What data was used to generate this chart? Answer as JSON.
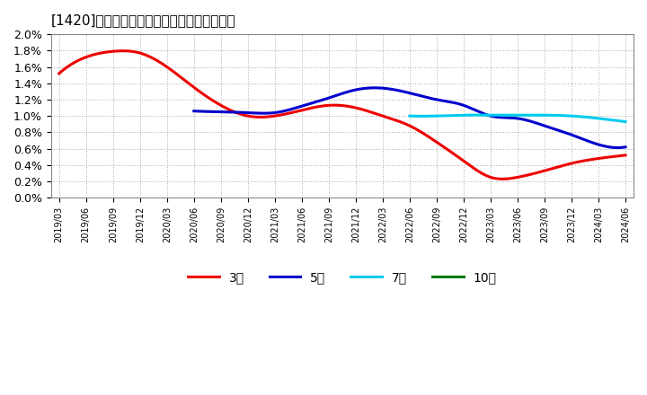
{
  "title": "[1420]　当期純利益マージンの平均値の推移",
  "ylim": [
    0.0,
    0.02
  ],
  "yticks": [
    0.0,
    0.002,
    0.004,
    0.006,
    0.008,
    0.01,
    0.012,
    0.014,
    0.016,
    0.018,
    0.02
  ],
  "ytick_labels": [
    "0.0%",
    "0.2%",
    "0.4%",
    "0.6%",
    "0.8%",
    "1.0%",
    "1.2%",
    "1.4%",
    "1.6%",
    "1.8%",
    "2.0%"
  ],
  "background_color": "#ffffff",
  "plot_bg_color": "#ffffff",
  "grid_color": "#aaaaaa",
  "line_colors": {
    "3y": "#ee0000",
    "5y": "#0000cc",
    "7y": "#00ccee",
    "10y": "#007700"
  },
  "legend_labels": [
    "3年",
    "5年",
    "7年",
    "10年"
  ],
  "x_labels": [
    "2019/03",
    "2019/06",
    "2019/09",
    "2019/12",
    "2020/03",
    "2020/06",
    "2020/09",
    "2020/12",
    "2021/03",
    "2021/06",
    "2021/09",
    "2021/12",
    "2022/03",
    "2022/06",
    "2022/09",
    "2022/12",
    "2023/03",
    "2023/06",
    "2023/09",
    "2023/12",
    "2024/03",
    "2024/06"
  ],
  "data_3y": [
    0.0152,
    0.0172,
    0.0179,
    0.0177,
    0.016,
    0.0135,
    0.0113,
    0.01,
    0.01,
    0.0107,
    0.0113,
    0.011,
    0.01,
    0.0088,
    0.0068,
    0.0045,
    0.0025,
    0.0025,
    0.0033,
    0.0042,
    0.0048,
    0.0052
  ],
  "data_5y": [
    null,
    null,
    null,
    null,
    null,
    0.0106,
    0.0105,
    0.0104,
    0.0104,
    0.0112,
    0.0122,
    0.0132,
    0.0134,
    0.0128,
    0.012,
    0.0113,
    0.01,
    0.0097,
    0.0088,
    0.0077,
    0.0065,
    0.0062
  ],
  "data_7y": [
    null,
    null,
    null,
    null,
    null,
    null,
    null,
    null,
    null,
    null,
    null,
    null,
    null,
    0.01,
    0.01,
    0.0101,
    0.0101,
    0.0101,
    0.0101,
    0.01,
    0.0097,
    0.0093
  ],
  "data_10y": [
    null,
    null,
    null,
    null,
    null,
    null,
    null,
    null,
    null,
    null,
    null,
    null,
    null,
    null,
    null,
    null,
    null,
    null,
    null,
    null,
    null,
    null
  ]
}
